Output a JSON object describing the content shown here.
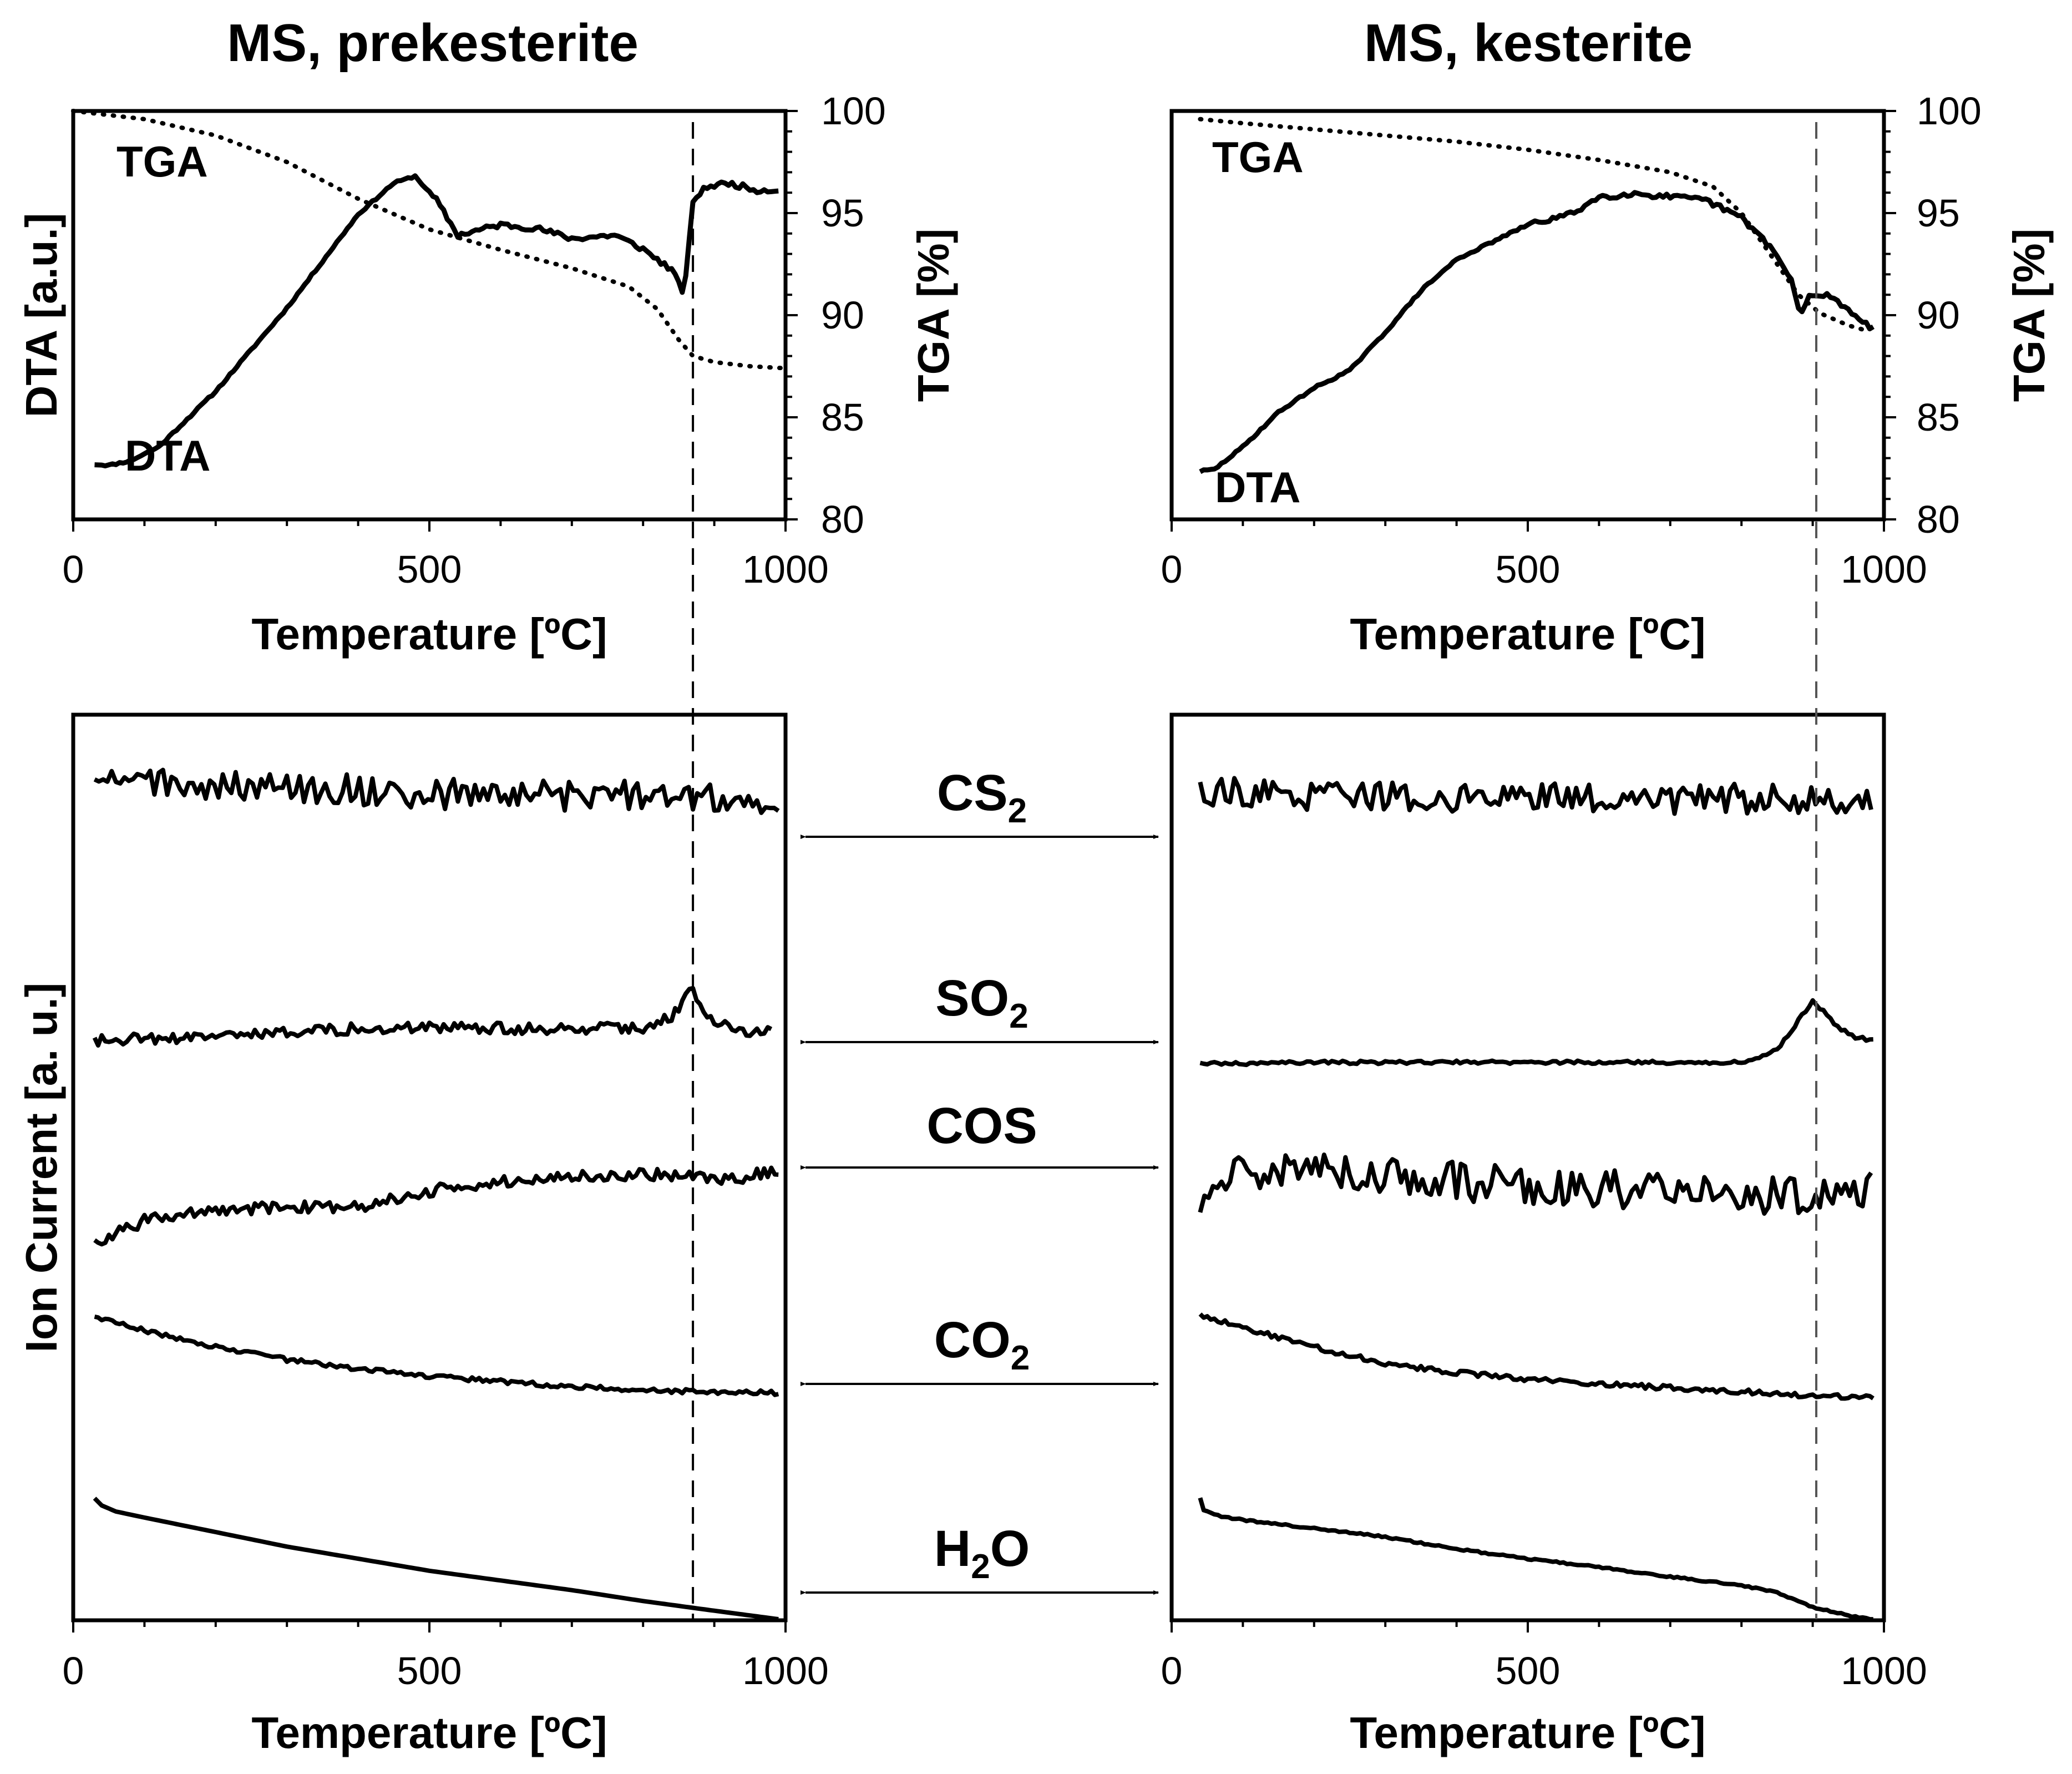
{
  "chart_data": [
    {
      "id": "tga_dta_prekesterite",
      "type": "line",
      "title": "MS, prekesterite",
      "xlabel": "Temperature [ºC]",
      "ylabel_left": "DTA [a.u.]",
      "ylabel_right": "TGA [%]",
      "xlim": [
        0,
        1000
      ],
      "ylim_right": [
        80,
        100
      ],
      "xticks": [
        "0",
        "500",
        "1000"
      ],
      "yticks_right": [
        "80",
        "85",
        "90",
        "95",
        "100"
      ],
      "dashed_line_x": 870,
      "series": [
        {
          "name": "TGA",
          "style": "dotted",
          "axis": "right",
          "x": [
            0,
            100,
            200,
            300,
            400,
            500,
            600,
            700,
            780,
            820,
            850,
            870,
            900,
            950,
            1000
          ],
          "y": [
            100,
            99.6,
            98.8,
            97.5,
            95.7,
            94.2,
            93.2,
            92.3,
            91.4,
            90.3,
            88.8,
            88.0,
            87.7,
            87.5,
            87.4
          ]
        },
        {
          "name": "DTA",
          "style": "solid",
          "axis": "left-arbitrary",
          "x": [
            30,
            50,
            80,
            120,
            200,
            300,
            400,
            450,
            480,
            510,
            540,
            600,
            650,
            700,
            760,
            800,
            840,
            858,
            870,
            890,
            920,
            960,
            990
          ],
          "y": [
            10.0,
            9.7,
            11.0,
            15.0,
            31.0,
            55.0,
            82.0,
            91.0,
            93.0,
            86.0,
            76.0,
            79.0,
            78.0,
            75.0,
            76.0,
            72.0,
            66.0,
            59.0,
            86.0,
            90.0,
            91.0,
            89.0,
            89.0
          ]
        }
      ]
    },
    {
      "id": "tga_dta_kesterite",
      "type": "line",
      "title": "MS, kesterite",
      "xlabel": "Temperature [ºC]",
      "ylabel_right": "TGA [%]",
      "xlim": [
        0,
        1000
      ],
      "ylim_right": [
        80,
        100
      ],
      "xticks": [
        "0",
        "500",
        "1000"
      ],
      "yticks_right": [
        "80",
        "85",
        "90",
        "95",
        "100"
      ],
      "dashed_line_x": 905,
      "series": [
        {
          "name": "TGA",
          "style": "dotted",
          "axis": "right",
          "x": [
            40,
            100,
            200,
            300,
            400,
            500,
            600,
            700,
            760,
            800,
            840,
            880,
            910,
            950,
            980
          ],
          "y": [
            99.6,
            99.4,
            99.1,
            98.8,
            98.5,
            98.1,
            97.6,
            97.0,
            96.3,
            95.0,
            93.0,
            91.0,
            90.1,
            89.5,
            89.2
          ]
        },
        {
          "name": "DTA",
          "style": "solid",
          "axis": "left-arbitrary",
          "x": [
            40,
            60,
            100,
            150,
            200,
            250,
            300,
            350,
            400,
            500,
            560,
            600,
            650,
            700,
            750,
            800,
            840,
            870,
            882,
            895,
            920,
            960,
            985
          ],
          "y": [
            8.0,
            8.5,
            15.0,
            25.0,
            32.0,
            37.0,
            48.0,
            60.0,
            69.0,
            79.0,
            82.0,
            87.0,
            88.0,
            87.0,
            86.0,
            81.0,
            73.0,
            63.0,
            53.0,
            58.0,
            59.0,
            53.0,
            49.0
          ]
        }
      ]
    },
    {
      "id": "ms_prekesterite",
      "type": "line",
      "xlabel": "Temperature [ºC]",
      "ylabel": "Ion Current [a. u.]",
      "xlim": [
        0,
        1000
      ],
      "xticks": [
        "0",
        "500",
        "1000"
      ],
      "dashed_line_x": 870,
      "noise_note": "CS2, SO2, COS and CO2 traces are noisy; values below describe the baseline trend",
      "series": [
        {
          "name": "CS2",
          "x": [
            30,
            100,
            200,
            300,
            400,
            500,
            600,
            700,
            800,
            900,
            990
          ],
          "y": [
            90,
            92,
            90,
            88,
            87,
            84,
            83,
            82,
            84,
            82,
            80
          ]
        },
        {
          "name": "SO2",
          "x": [
            30,
            100,
            200,
            300,
            400,
            500,
            600,
            700,
            800,
            840,
            860,
            870,
            885,
            900,
            950,
            980
          ],
          "y": [
            30,
            31,
            32,
            36,
            39,
            40,
            39,
            38,
            40,
            48,
            62,
            68,
            55,
            42,
            37,
            36
          ]
        },
        {
          "name": "COS",
          "x": [
            30,
            100,
            200,
            300,
            400,
            500,
            600,
            700,
            800,
            870,
            920,
            990
          ],
          "y": [
            15,
            32,
            40,
            42,
            43,
            55,
            62,
            66,
            68,
            66,
            64,
            70
          ]
        },
        {
          "name": "CO2",
          "x": [
            30,
            100,
            200,
            300,
            400,
            500,
            600,
            700,
            800,
            900,
            990
          ],
          "y": [
            98,
            88,
            75,
            65,
            58,
            52,
            48,
            44,
            41,
            40,
            39
          ]
        },
        {
          "name": "H2O",
          "x": [
            30,
            40,
            60,
            100,
            200,
            300,
            400,
            500,
            600,
            700,
            800,
            900,
            990
          ],
          "y": [
            100,
            94,
            89,
            84,
            72,
            60,
            50,
            40,
            32,
            24,
            15,
            7,
            0
          ]
        }
      ]
    },
    {
      "id": "ms_kesterite",
      "type": "line",
      "xlabel": "Temperature [ºC]",
      "xlim": [
        0,
        1000
      ],
      "xticks": [
        "0",
        "500",
        "1000"
      ],
      "dashed_line_x": 905,
      "series": [
        {
          "name": "CS2",
          "x": [
            40,
            100,
            200,
            300,
            400,
            500,
            600,
            700,
            800,
            900,
            985
          ],
          "y": [
            88,
            84,
            82,
            82,
            81,
            80,
            80,
            79,
            80,
            80,
            80
          ]
        },
        {
          "name": "SO2",
          "x": [
            40,
            100,
            200,
            300,
            400,
            500,
            600,
            700,
            800,
            850,
            880,
            900,
            915,
            935,
            960,
            985
          ],
          "y": [
            12,
            12,
            13,
            13,
            13,
            13,
            13,
            13,
            13,
            22,
            45,
            60,
            52,
            40,
            32,
            30
          ]
        },
        {
          "name": "COS",
          "x": [
            40,
            60,
            100,
            200,
            300,
            400,
            500,
            600,
            700,
            800,
            900,
            985
          ],
          "y": [
            32,
            62,
            70,
            68,
            66,
            62,
            58,
            56,
            55,
            52,
            50,
            55
          ]
        },
        {
          "name": "CO2",
          "x": [
            40,
            100,
            200,
            300,
            400,
            500,
            600,
            700,
            800,
            900,
            985
          ],
          "y": [
            100,
            90,
            75,
            62,
            55,
            50,
            46,
            43,
            40,
            37,
            36
          ]
        },
        {
          "name": "H2O",
          "x": [
            40,
            45,
            60,
            100,
            200,
            300,
            400,
            500,
            600,
            700,
            800,
            850,
            900,
            950,
            985
          ],
          "y": [
            100,
            90,
            86,
            82,
            75,
            68,
            58,
            50,
            43,
            35,
            28,
            22,
            10,
            3,
            0
          ]
        }
      ]
    }
  ],
  "labels": {
    "tga": "TGA",
    "dta": "DTA"
  },
  "gases": [
    {
      "base": "CS",
      "sub": "2"
    },
    {
      "base": "SO",
      "sub": "2"
    },
    {
      "base": "COS",
      "sub": ""
    },
    {
      "base": "CO",
      "sub": "2"
    },
    {
      "base": "H",
      "sub": "2",
      "after": "O"
    }
  ],
  "colors": {
    "line": "#000000",
    "dashed": "#000000",
    "background": "#ffffff"
  }
}
